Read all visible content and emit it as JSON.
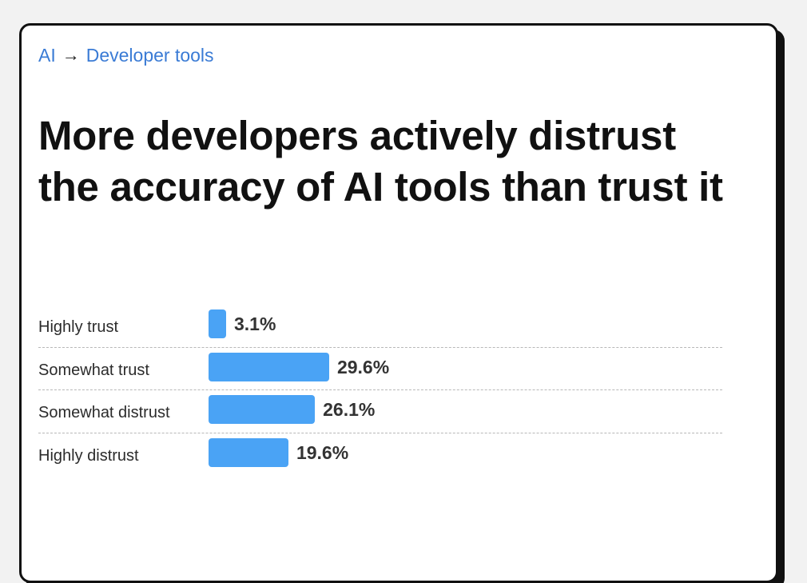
{
  "breadcrumb": {
    "items": [
      "AI",
      "Developer tools"
    ]
  },
  "title": "More developers actively distrust the accuracy of AI tools than trust it",
  "colors": {
    "bar": "#4aa3f5",
    "link": "#3a7bd5"
  },
  "chart_data": {
    "type": "bar",
    "orientation": "horizontal",
    "title": "",
    "categories": [
      "Highly trust",
      "Somewhat trust",
      "Somewhat distrust",
      "Highly distrust"
    ],
    "values": [
      3.1,
      29.6,
      26.1,
      19.6
    ],
    "value_labels": [
      "3.1%",
      "29.6%",
      "26.1%",
      "19.6%"
    ],
    "unit": "%",
    "grid": false
  }
}
